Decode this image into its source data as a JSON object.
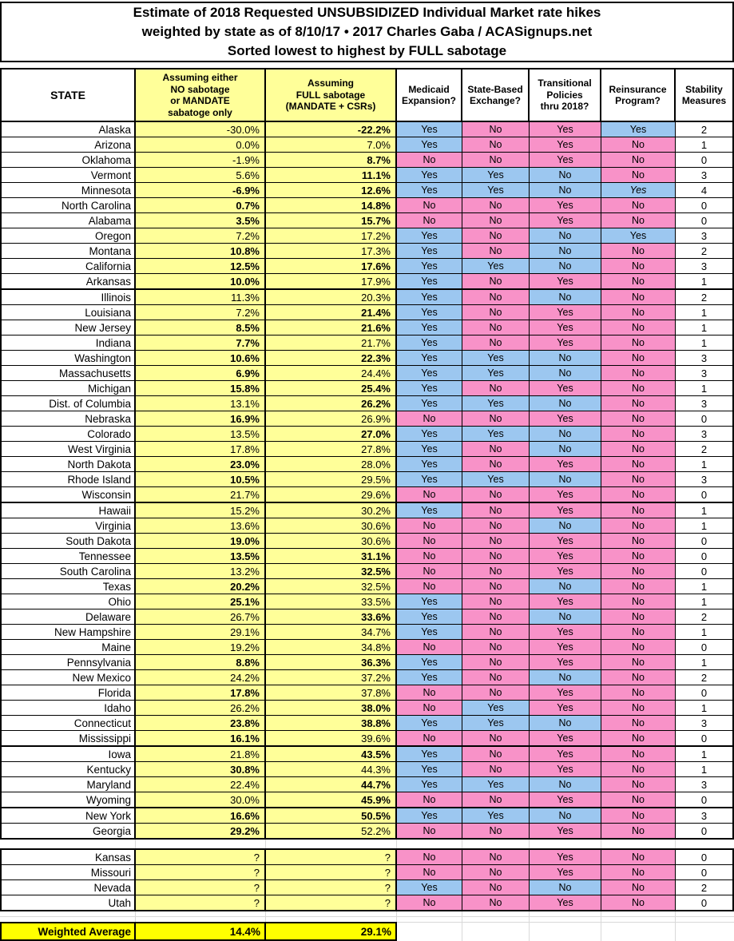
{
  "colors": {
    "cell_yellow": "#FFFF99",
    "highlight_yellow": "#FFFF00",
    "yes_blue": "#9CC7F0",
    "no_pink": "#F892C8",
    "gridline_gray": "#D9D9D9",
    "border_black": "#000000"
  },
  "chart_data": {
    "type": "table",
    "title_lines": [
      "Estimate of 2018 Requested UNSUBSIDIZED Individual Market rate hikes",
      "weighted by state as of 8/10/17  •  2017 Charles Gaba / ACASignups.net",
      "Sorted lowest to highest by FULL sabotage"
    ],
    "columns": [
      "STATE",
      "Assuming either\nNO sabotage\nor MANDATE\nsabatoge only",
      "Assuming\nFULL sabotage\n(MANDATE + CSRs)",
      "Medicaid\nExpansion?",
      "State-Based\nExchange?",
      "Transitional\nPolicies\nthru 2018?",
      "Reinsurance\nProgram?",
      "Stability\nMeasures"
    ],
    "row_format": [
      "state",
      "no_sabotage_pct",
      "no_sabotage_bold",
      "full_sabotage_pct",
      "full_sabotage_bold",
      "medicaid_expansion",
      "state_based_exchange",
      "transitional_policies_thru_2018",
      "reinsurance_program",
      "stability_measures"
    ],
    "rows": [
      [
        "Alaska",
        "-30.0%",
        false,
        "-22.2%",
        true,
        "Yes",
        "No",
        "Yes",
        "Yes",
        "2"
      ],
      [
        "Arizona",
        "0.0%",
        false,
        "7.0%",
        false,
        "Yes",
        "No",
        "Yes",
        "No",
        "1"
      ],
      [
        "Oklahoma",
        "-1.9%",
        false,
        "8.7%",
        true,
        "No",
        "No",
        "Yes",
        "No",
        "0"
      ],
      [
        "Vermont",
        "5.6%",
        false,
        "11.1%",
        true,
        "Yes",
        "Yes",
        "No",
        "No",
        "3"
      ],
      [
        "Minnesota",
        "-6.9%",
        true,
        "12.6%",
        true,
        "Yes",
        "Yes",
        "No",
        "Yes",
        "4"
      ],
      [
        "North Carolina",
        "0.7%",
        true,
        "14.8%",
        true,
        "No",
        "No",
        "Yes",
        "No",
        "0"
      ],
      [
        "Alabama",
        "3.5%",
        true,
        "15.7%",
        true,
        "No",
        "No",
        "Yes",
        "No",
        "0"
      ],
      [
        "Oregon",
        "7.2%",
        false,
        "17.2%",
        false,
        "Yes",
        "No",
        "No",
        "Yes",
        "3"
      ],
      [
        "Montana",
        "10.8%",
        true,
        "17.3%",
        false,
        "Yes",
        "No",
        "No",
        "No",
        "2"
      ],
      [
        "California",
        "12.5%",
        true,
        "17.6%",
        true,
        "Yes",
        "Yes",
        "No",
        "No",
        "3"
      ],
      [
        "Arkansas",
        "10.0%",
        true,
        "17.9%",
        false,
        "Yes",
        "No",
        "Yes",
        "No",
        "1"
      ],
      [
        "Illinois",
        "11.3%",
        false,
        "20.3%",
        false,
        "Yes",
        "No",
        "No",
        "No",
        "2"
      ],
      [
        "Louisiana",
        "7.2%",
        false,
        "21.4%",
        true,
        "Yes",
        "No",
        "Yes",
        "No",
        "1"
      ],
      [
        "New Jersey",
        "8.5%",
        true,
        "21.6%",
        true,
        "Yes",
        "No",
        "Yes",
        "No",
        "1"
      ],
      [
        "Indiana",
        "7.7%",
        true,
        "21.7%",
        false,
        "Yes",
        "No",
        "Yes",
        "No",
        "1"
      ],
      [
        "Washington",
        "10.6%",
        true,
        "22.3%",
        true,
        "Yes",
        "Yes",
        "No",
        "No",
        "3"
      ],
      [
        "Massachusetts",
        "6.9%",
        true,
        "24.4%",
        false,
        "Yes",
        "Yes",
        "No",
        "No",
        "3"
      ],
      [
        "Michigan",
        "15.8%",
        true,
        "25.4%",
        true,
        "Yes",
        "No",
        "Yes",
        "No",
        "1"
      ],
      [
        "Dist. of Columbia",
        "13.1%",
        false,
        "26.2%",
        true,
        "Yes",
        "Yes",
        "No",
        "No",
        "3"
      ],
      [
        "Nebraska",
        "16.9%",
        true,
        "26.9%",
        false,
        "No",
        "No",
        "Yes",
        "No",
        "0"
      ],
      [
        "Colorado",
        "13.5%",
        false,
        "27.0%",
        true,
        "Yes",
        "Yes",
        "No",
        "No",
        "3"
      ],
      [
        "West Virginia",
        "17.8%",
        false,
        "27.8%",
        false,
        "Yes",
        "No",
        "No",
        "No",
        "2"
      ],
      [
        "North Dakota",
        "23.0%",
        true,
        "28.0%",
        false,
        "Yes",
        "No",
        "Yes",
        "No",
        "1"
      ],
      [
        "Rhode Island",
        "10.5%",
        true,
        "29.5%",
        false,
        "Yes",
        "Yes",
        "No",
        "No",
        "3"
      ],
      [
        "Wisconsin",
        "21.7%",
        false,
        "29.6%",
        false,
        "No",
        "No",
        "Yes",
        "No",
        "0"
      ],
      [
        "Hawaii",
        "15.2%",
        false,
        "30.2%",
        false,
        "Yes",
        "No",
        "Yes",
        "No",
        "1"
      ],
      [
        "Virginia",
        "13.6%",
        false,
        "30.6%",
        false,
        "No",
        "No",
        "No",
        "No",
        "1"
      ],
      [
        "South Dakota",
        "19.0%",
        true,
        "30.6%",
        false,
        "No",
        "No",
        "Yes",
        "No",
        "0"
      ],
      [
        "Tennessee",
        "13.5%",
        true,
        "31.1%",
        true,
        "No",
        "No",
        "Yes",
        "No",
        "0"
      ],
      [
        "South Carolina",
        "13.2%",
        false,
        "32.5%",
        true,
        "No",
        "No",
        "Yes",
        "No",
        "0"
      ],
      [
        "Texas",
        "20.2%",
        true,
        "32.5%",
        false,
        "No",
        "No",
        "No",
        "No",
        "1"
      ],
      [
        "Ohio",
        "25.1%",
        true,
        "33.5%",
        false,
        "Yes",
        "No",
        "Yes",
        "No",
        "1"
      ],
      [
        "Delaware",
        "26.7%",
        false,
        "33.6%",
        true,
        "Yes",
        "No",
        "No",
        "No",
        "2"
      ],
      [
        "New Hampshire",
        "29.1%",
        false,
        "34.7%",
        false,
        "Yes",
        "No",
        "Yes",
        "No",
        "1"
      ],
      [
        "Maine",
        "19.2%",
        false,
        "34.8%",
        false,
        "No",
        "No",
        "Yes",
        "No",
        "0"
      ],
      [
        "Pennsylvania",
        "8.8%",
        true,
        "36.3%",
        true,
        "Yes",
        "No",
        "Yes",
        "No",
        "1"
      ],
      [
        "New Mexico",
        "24.2%",
        false,
        "37.2%",
        false,
        "Yes",
        "No",
        "No",
        "No",
        "2"
      ],
      [
        "Florida",
        "17.8%",
        true,
        "37.8%",
        false,
        "No",
        "No",
        "Yes",
        "No",
        "0"
      ],
      [
        "Idaho",
        "26.2%",
        false,
        "38.0%",
        true,
        "No",
        "Yes",
        "Yes",
        "No",
        "1"
      ],
      [
        "Connecticut",
        "23.8%",
        true,
        "38.8%",
        true,
        "Yes",
        "Yes",
        "No",
        "No",
        "3"
      ],
      [
        "Mississippi",
        "16.1%",
        true,
        "39.6%",
        false,
        "No",
        "No",
        "Yes",
        "No",
        "0"
      ],
      [
        "Iowa",
        "21.8%",
        false,
        "43.5%",
        true,
        "Yes",
        "No",
        "Yes",
        "No",
        "1"
      ],
      [
        "Kentucky",
        "30.8%",
        true,
        "44.3%",
        false,
        "Yes",
        "No",
        "Yes",
        "No",
        "1"
      ],
      [
        "Maryland",
        "22.4%",
        false,
        "44.7%",
        true,
        "Yes",
        "Yes",
        "No",
        "No",
        "3"
      ],
      [
        "Wyoming",
        "30.0%",
        false,
        "45.9%",
        true,
        "No",
        "No",
        "Yes",
        "No",
        "0"
      ],
      [
        "New York",
        "16.6%",
        true,
        "50.5%",
        true,
        "Yes",
        "Yes",
        "No",
        "No",
        "3"
      ],
      [
        "Georgia",
        "29.2%",
        true,
        "52.2%",
        false,
        "No",
        "No",
        "Yes",
        "No",
        "0"
      ]
    ],
    "unknown_rows": [
      [
        "Kansas",
        "?",
        false,
        "?",
        false,
        "No",
        "No",
        "Yes",
        "No",
        "0"
      ],
      [
        "Missouri",
        "?",
        false,
        "?",
        false,
        "No",
        "No",
        "Yes",
        "No",
        "0"
      ],
      [
        "Nevada",
        "?",
        false,
        "?",
        false,
        "Yes",
        "No",
        "No",
        "No",
        "2"
      ],
      [
        "Utah",
        "?",
        false,
        "?",
        false,
        "No",
        "No",
        "Yes",
        "No",
        "0"
      ]
    ],
    "weighted_average": {
      "label": "Weighted Average",
      "no_sabotage": "14.4%",
      "full_sabotage": "29.1%"
    },
    "thick_separator_after_states": [
      "Arkansas",
      "Wisconsin",
      "Mississippi",
      "Wyoming"
    ],
    "italic_reinsurance_states": [
      "Minnesota"
    ],
    "yes_no_color_rules": {
      "medicaid_expansion": "yes_blue_no_pink",
      "state_based_exchange": "yes_blue_no_pink",
      "transitional_policies_thru_2018": "yes_pink_no_blue",
      "reinsurance_program": "yes_blue_no_pink"
    }
  }
}
